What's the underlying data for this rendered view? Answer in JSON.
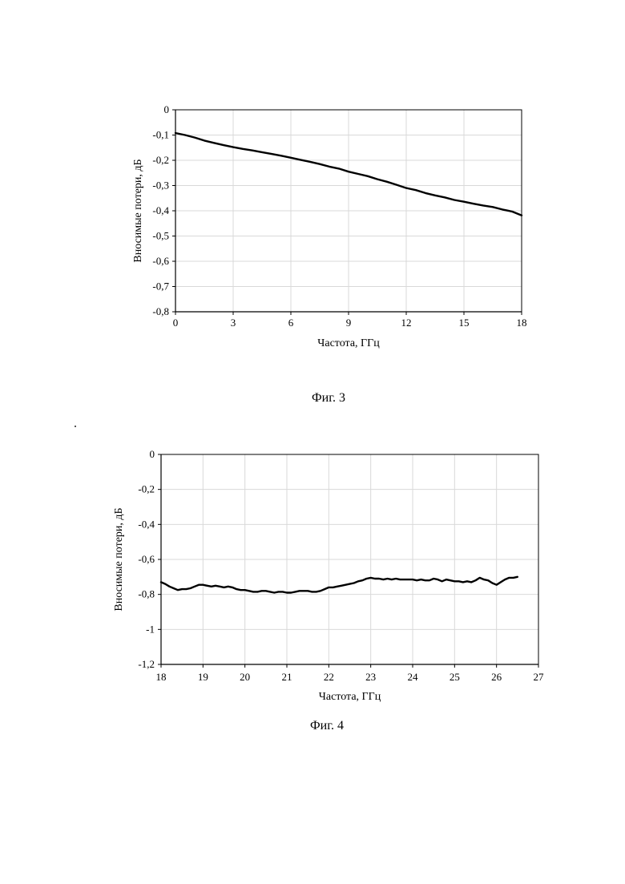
{
  "figures": [
    {
      "caption": "Фиг. 3"
    },
    {
      "caption": "Фиг. 4"
    }
  ],
  "chart_data": [
    {
      "type": "line",
      "title": "",
      "xlabel": "Частота, ГГц",
      "ylabel": "Вносимые потери, дБ",
      "xlim": [
        0,
        18
      ],
      "ylim": [
        -0.8,
        0
      ],
      "x_ticks": [
        "0",
        "3",
        "6",
        "9",
        "12",
        "15",
        "18"
      ],
      "y_ticks": [
        "0",
        "-0,1",
        "-0,2",
        "-0,3",
        "-0,4",
        "-0,5",
        "-0,6",
        "-0,7",
        "-0,8"
      ],
      "grid": true,
      "line_color": "#000000",
      "series": [
        {
          "x": [
            0,
            0.5,
            1,
            1.5,
            2,
            2.5,
            3,
            3.5,
            4,
            4.5,
            5,
            5.5,
            6,
            6.5,
            7,
            7.5,
            8,
            8.5,
            9,
            9.5,
            10,
            10.5,
            11,
            11.5,
            12,
            12.5,
            13,
            13.5,
            14,
            14.5,
            15,
            15.5,
            16,
            16.5,
            17,
            17.5,
            18
          ],
          "y": [
            -0.092,
            -0.1,
            -0.11,
            -0.122,
            -0.131,
            -0.14,
            -0.148,
            -0.155,
            -0.161,
            -0.168,
            -0.175,
            -0.182,
            -0.19,
            -0.198,
            -0.206,
            -0.215,
            -0.225,
            -0.233,
            -0.245,
            -0.254,
            -0.263,
            -0.275,
            -0.285,
            -0.297,
            -0.31,
            -0.318,
            -0.33,
            -0.339,
            -0.347,
            -0.357,
            -0.364,
            -0.372,
            -0.379,
            -0.385,
            -0.395,
            -0.403,
            -0.418
          ]
        }
      ]
    },
    {
      "type": "line",
      "title": "",
      "xlabel": "Частота, ГГц",
      "ylabel": "Вносимые потери, дБ",
      "xlim": [
        18,
        27
      ],
      "ylim": [
        -1.2,
        0
      ],
      "x_ticks": [
        "18",
        "19",
        "20",
        "21",
        "22",
        "23",
        "24",
        "25",
        "26",
        "27"
      ],
      "y_ticks": [
        "0",
        "-0,2",
        "-0,4",
        "-0,6",
        "-0,8",
        "-1",
        "-1,2"
      ],
      "grid": true,
      "line_color": "#000000",
      "series": [
        {
          "x": [
            18,
            18.1,
            18.2,
            18.3,
            18.4,
            18.5,
            18.6,
            18.7,
            18.8,
            18.9,
            19,
            19.1,
            19.2,
            19.3,
            19.4,
            19.5,
            19.6,
            19.7,
            19.8,
            19.9,
            20,
            20.1,
            20.2,
            20.3,
            20.4,
            20.5,
            20.6,
            20.7,
            20.8,
            20.9,
            21,
            21.1,
            21.2,
            21.3,
            21.4,
            21.5,
            21.6,
            21.7,
            21.8,
            21.9,
            22,
            22.1,
            22.2,
            22.3,
            22.4,
            22.5,
            22.6,
            22.7,
            22.8,
            22.9,
            23,
            23.1,
            23.2,
            23.3,
            23.4,
            23.5,
            23.6,
            23.7,
            23.8,
            23.9,
            24,
            24.1,
            24.2,
            24.3,
            24.4,
            24.5,
            24.6,
            24.7,
            24.8,
            24.9,
            25,
            25.1,
            25.2,
            25.3,
            25.4,
            25.5,
            25.6,
            25.7,
            25.8,
            25.9,
            26,
            26.1,
            26.2,
            26.3,
            26.4,
            26.5
          ],
          "y": [
            -0.73,
            -0.74,
            -0.755,
            -0.765,
            -0.775,
            -0.77,
            -0.77,
            -0.765,
            -0.755,
            -0.745,
            -0.745,
            -0.75,
            -0.755,
            -0.75,
            -0.755,
            -0.76,
            -0.755,
            -0.76,
            -0.77,
            -0.775,
            -0.775,
            -0.78,
            -0.785,
            -0.785,
            -0.78,
            -0.78,
            -0.785,
            -0.79,
            -0.785,
            -0.785,
            -0.79,
            -0.79,
            -0.785,
            -0.78,
            -0.78,
            -0.78,
            -0.785,
            -0.785,
            -0.78,
            -0.77,
            -0.76,
            -0.76,
            -0.755,
            -0.75,
            -0.745,
            -0.74,
            -0.735,
            -0.725,
            -0.72,
            -0.71,
            -0.705,
            -0.71,
            -0.71,
            -0.715,
            -0.71,
            -0.715,
            -0.71,
            -0.715,
            -0.715,
            -0.715,
            -0.715,
            -0.72,
            -0.715,
            -0.72,
            -0.72,
            -0.71,
            -0.715,
            -0.725,
            -0.715,
            -0.72,
            -0.725,
            -0.725,
            -0.73,
            -0.725,
            -0.73,
            -0.72,
            -0.705,
            -0.715,
            -0.72,
            -0.735,
            -0.745,
            -0.73,
            -0.715,
            -0.705,
            -0.705,
            -0.7
          ]
        }
      ]
    }
  ]
}
